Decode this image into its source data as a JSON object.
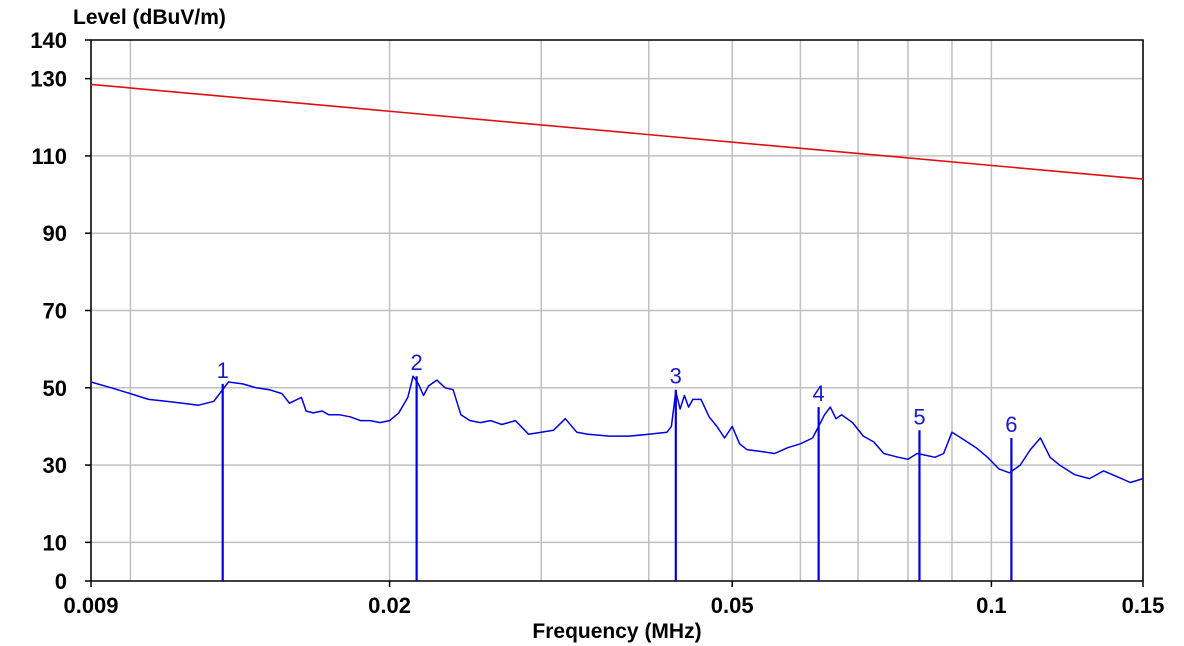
{
  "chart_data": {
    "type": "line",
    "ylabel": "Level (dBuV/m)",
    "xlabel": "Frequency (MHz)",
    "x_scale": "log",
    "xlim": [
      0.009,
      0.15
    ],
    "ylim": [
      0,
      140
    ],
    "x_ticks": [
      {
        "value": 0.009,
        "label": "0.009"
      },
      {
        "value": 0.02,
        "label": "0.02"
      },
      {
        "value": 0.05,
        "label": "0.05"
      },
      {
        "value": 0.1,
        "label": "0.1"
      },
      {
        "value": 0.15,
        "label": "0.15"
      }
    ],
    "x_grid": [
      0.009,
      0.01,
      0.02,
      0.03,
      0.04,
      0.05,
      0.06,
      0.07,
      0.08,
      0.09,
      0.1,
      0.15
    ],
    "y_ticks": [
      0,
      10,
      30,
      50,
      70,
      90,
      110,
      130,
      140
    ],
    "y_grid": [
      10,
      30,
      50,
      70,
      90,
      110,
      130
    ],
    "grid": true,
    "colors": {
      "limit": "#e01010",
      "trace": "#0000e0",
      "markers": "#1a1acc",
      "grid": "#c0c0c0"
    },
    "series": [
      {
        "role": "limit",
        "x": [
          0.009,
          0.15
        ],
        "values": [
          128.5,
          104
        ]
      },
      {
        "role": "measurement",
        "x": [
          0.009,
          0.0095,
          0.01,
          0.0105,
          0.011,
          0.0115,
          0.012,
          0.0125,
          0.013,
          0.0135,
          0.014,
          0.0145,
          0.015,
          0.0153,
          0.0158,
          0.016,
          0.0163,
          0.0167,
          0.017,
          0.0175,
          0.018,
          0.0185,
          0.019,
          0.0195,
          0.02,
          0.0205,
          0.021,
          0.0213,
          0.0216,
          0.0219,
          0.0222,
          0.0227,
          0.0232,
          0.0237,
          0.0242,
          0.0248,
          0.0255,
          0.0262,
          0.027,
          0.028,
          0.029,
          0.03,
          0.031,
          0.032,
          0.033,
          0.034,
          0.036,
          0.038,
          0.04,
          0.042,
          0.0425,
          0.043,
          0.0435,
          0.044,
          0.0445,
          0.045,
          0.046,
          0.047,
          0.048,
          0.049,
          0.05,
          0.051,
          0.052,
          0.054,
          0.056,
          0.058,
          0.06,
          0.062,
          0.063,
          0.064,
          0.065,
          0.066,
          0.067,
          0.069,
          0.071,
          0.073,
          0.075,
          0.078,
          0.08,
          0.082,
          0.084,
          0.086,
          0.088,
          0.09,
          0.093,
          0.096,
          0.099,
          0.102,
          0.105,
          0.108,
          0.111,
          0.114,
          0.117,
          0.12,
          0.125,
          0.13,
          0.135,
          0.14,
          0.145,
          0.15
        ],
        "values": [
          51.5,
          50.0,
          48.5,
          47.0,
          46.5,
          46.0,
          45.5,
          46.5,
          51.5,
          51.0,
          50.0,
          49.5,
          48.5,
          46.0,
          47.5,
          44.0,
          43.5,
          44.0,
          43.0,
          43.0,
          42.5,
          41.5,
          41.5,
          41.0,
          41.5,
          43.5,
          47.5,
          53.0,
          51.0,
          48.0,
          50.5,
          52.0,
          50.0,
          49.5,
          43.0,
          41.5,
          41.0,
          41.5,
          40.5,
          41.5,
          38.0,
          38.5,
          39.0,
          42.0,
          38.5,
          38.0,
          37.5,
          37.5,
          38.0,
          38.5,
          40.0,
          49.0,
          44.5,
          48.0,
          45.0,
          47.0,
          47.0,
          42.5,
          40.0,
          37.0,
          40.0,
          35.5,
          34.0,
          33.5,
          33.0,
          34.5,
          35.5,
          37.0,
          40.0,
          43.0,
          45.0,
          42.0,
          43.0,
          41.0,
          37.5,
          36.0,
          33.0,
          32.0,
          31.5,
          33.0,
          32.5,
          32.0,
          33.0,
          38.5,
          36.5,
          34.5,
          32.0,
          29.0,
          28.0,
          30.0,
          34.0,
          37.0,
          32.0,
          30.0,
          27.5,
          26.5,
          28.5,
          27.0,
          25.5,
          26.5
        ]
      }
    ],
    "markers": [
      {
        "label": "1",
        "x": 0.0128,
        "value": 51.0
      },
      {
        "label": "2",
        "x": 0.0215,
        "value": 53.0
      },
      {
        "label": "3",
        "x": 0.043,
        "value": 49.5
      },
      {
        "label": "4",
        "x": 0.063,
        "value": 45.0
      },
      {
        "label": "5",
        "x": 0.0825,
        "value": 39.0
      },
      {
        "label": "6",
        "x": 0.1055,
        "value": 37.0
      }
    ]
  }
}
